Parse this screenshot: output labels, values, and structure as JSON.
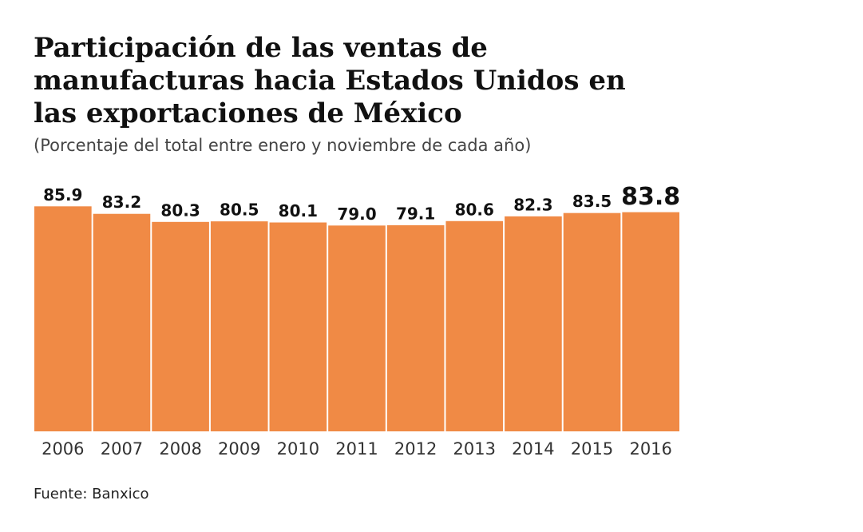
{
  "chart_data": {
    "type": "bar",
    "title": "Participación de las ventas de manufacturas hacia Estados Unidos en las exportaciones de México",
    "subtitle": "(Porcentaje del total entre enero y noviembre de cada año)",
    "categories": [
      "2006",
      "2007",
      "2008",
      "2009",
      "2010",
      "2011",
      "2012",
      "2013",
      "2014",
      "2015",
      "2016"
    ],
    "values": [
      85.9,
      83.2,
      80.3,
      80.5,
      80.1,
      79.0,
      79.1,
      80.6,
      82.3,
      83.5,
      83.8
    ],
    "value_labels": [
      "85.9",
      "83.2",
      "80.3",
      "80.5",
      "80.1",
      "79.0",
      "79.1",
      "80.6",
      "82.3",
      "83.5",
      "83.8"
    ],
    "color": "#f08a45",
    "ylim": [
      5,
      88
    ],
    "source": "Fuente: Banxico"
  }
}
